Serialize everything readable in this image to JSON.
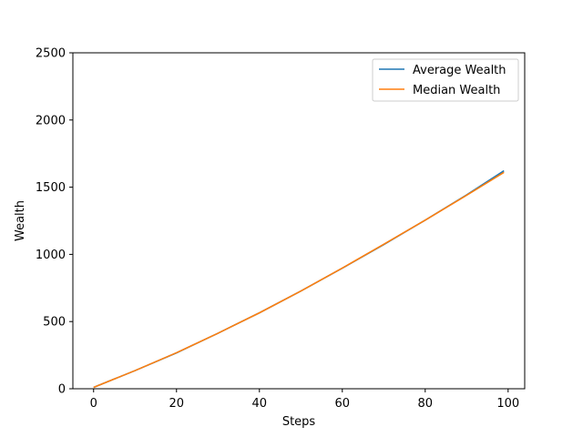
{
  "chart_data": {
    "type": "line",
    "title": "",
    "xlabel": "Steps",
    "ylabel": "Wealth",
    "xlim": [
      -5,
      104
    ],
    "ylim": [
      0,
      2500
    ],
    "xticks": [
      0,
      20,
      40,
      60,
      80,
      100
    ],
    "yticks": [
      0,
      500,
      1000,
      1500,
      2000,
      2500
    ],
    "grid": false,
    "legend_position": "top-right",
    "x": [
      0,
      10,
      20,
      30,
      40,
      50,
      60,
      70,
      80,
      90,
      99
    ],
    "series": [
      {
        "name": "Average Wealth",
        "color": "#1f77b4",
        "values": [
          10,
          135,
          267,
          413,
          565,
          727,
          897,
          1073,
          1255,
          1443,
          1622
        ]
      },
      {
        "name": "Median Wealth",
        "color": "#ff7f0e",
        "values": [
          10,
          135,
          268,
          413,
          565,
          727,
          898,
          1075,
          1255,
          1440,
          1610
        ]
      }
    ]
  }
}
